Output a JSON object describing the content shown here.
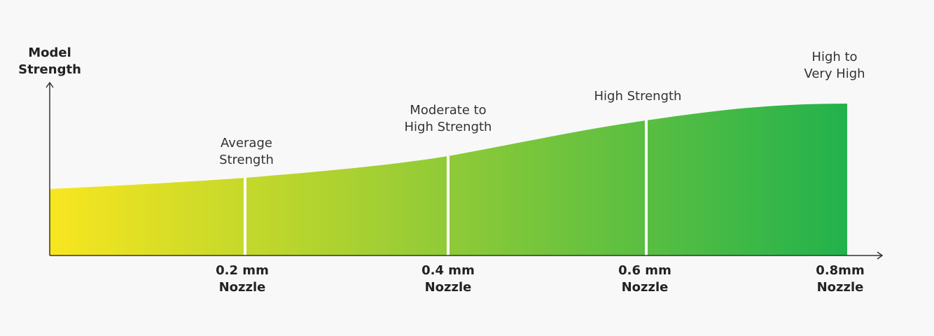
{
  "axis": {
    "y_label": [
      "Model",
      "Strength"
    ]
  },
  "levels": [
    {
      "label": [
        "Average",
        "Strength"
      ],
      "nozzle": [
        "0.2 mm",
        "Nozzle"
      ]
    },
    {
      "label": [
        "Moderate to",
        "High Strength"
      ],
      "nozzle": [
        "0.4 mm",
        "Nozzle"
      ]
    },
    {
      "label": [
        "High Strength"
      ],
      "nozzle": [
        "0.6 mm",
        "Nozzle"
      ]
    },
    {
      "label": [
        "High to",
        "Very High"
      ],
      "nozzle": [
        "0.8mm",
        "Nozzle"
      ]
    }
  ]
}
